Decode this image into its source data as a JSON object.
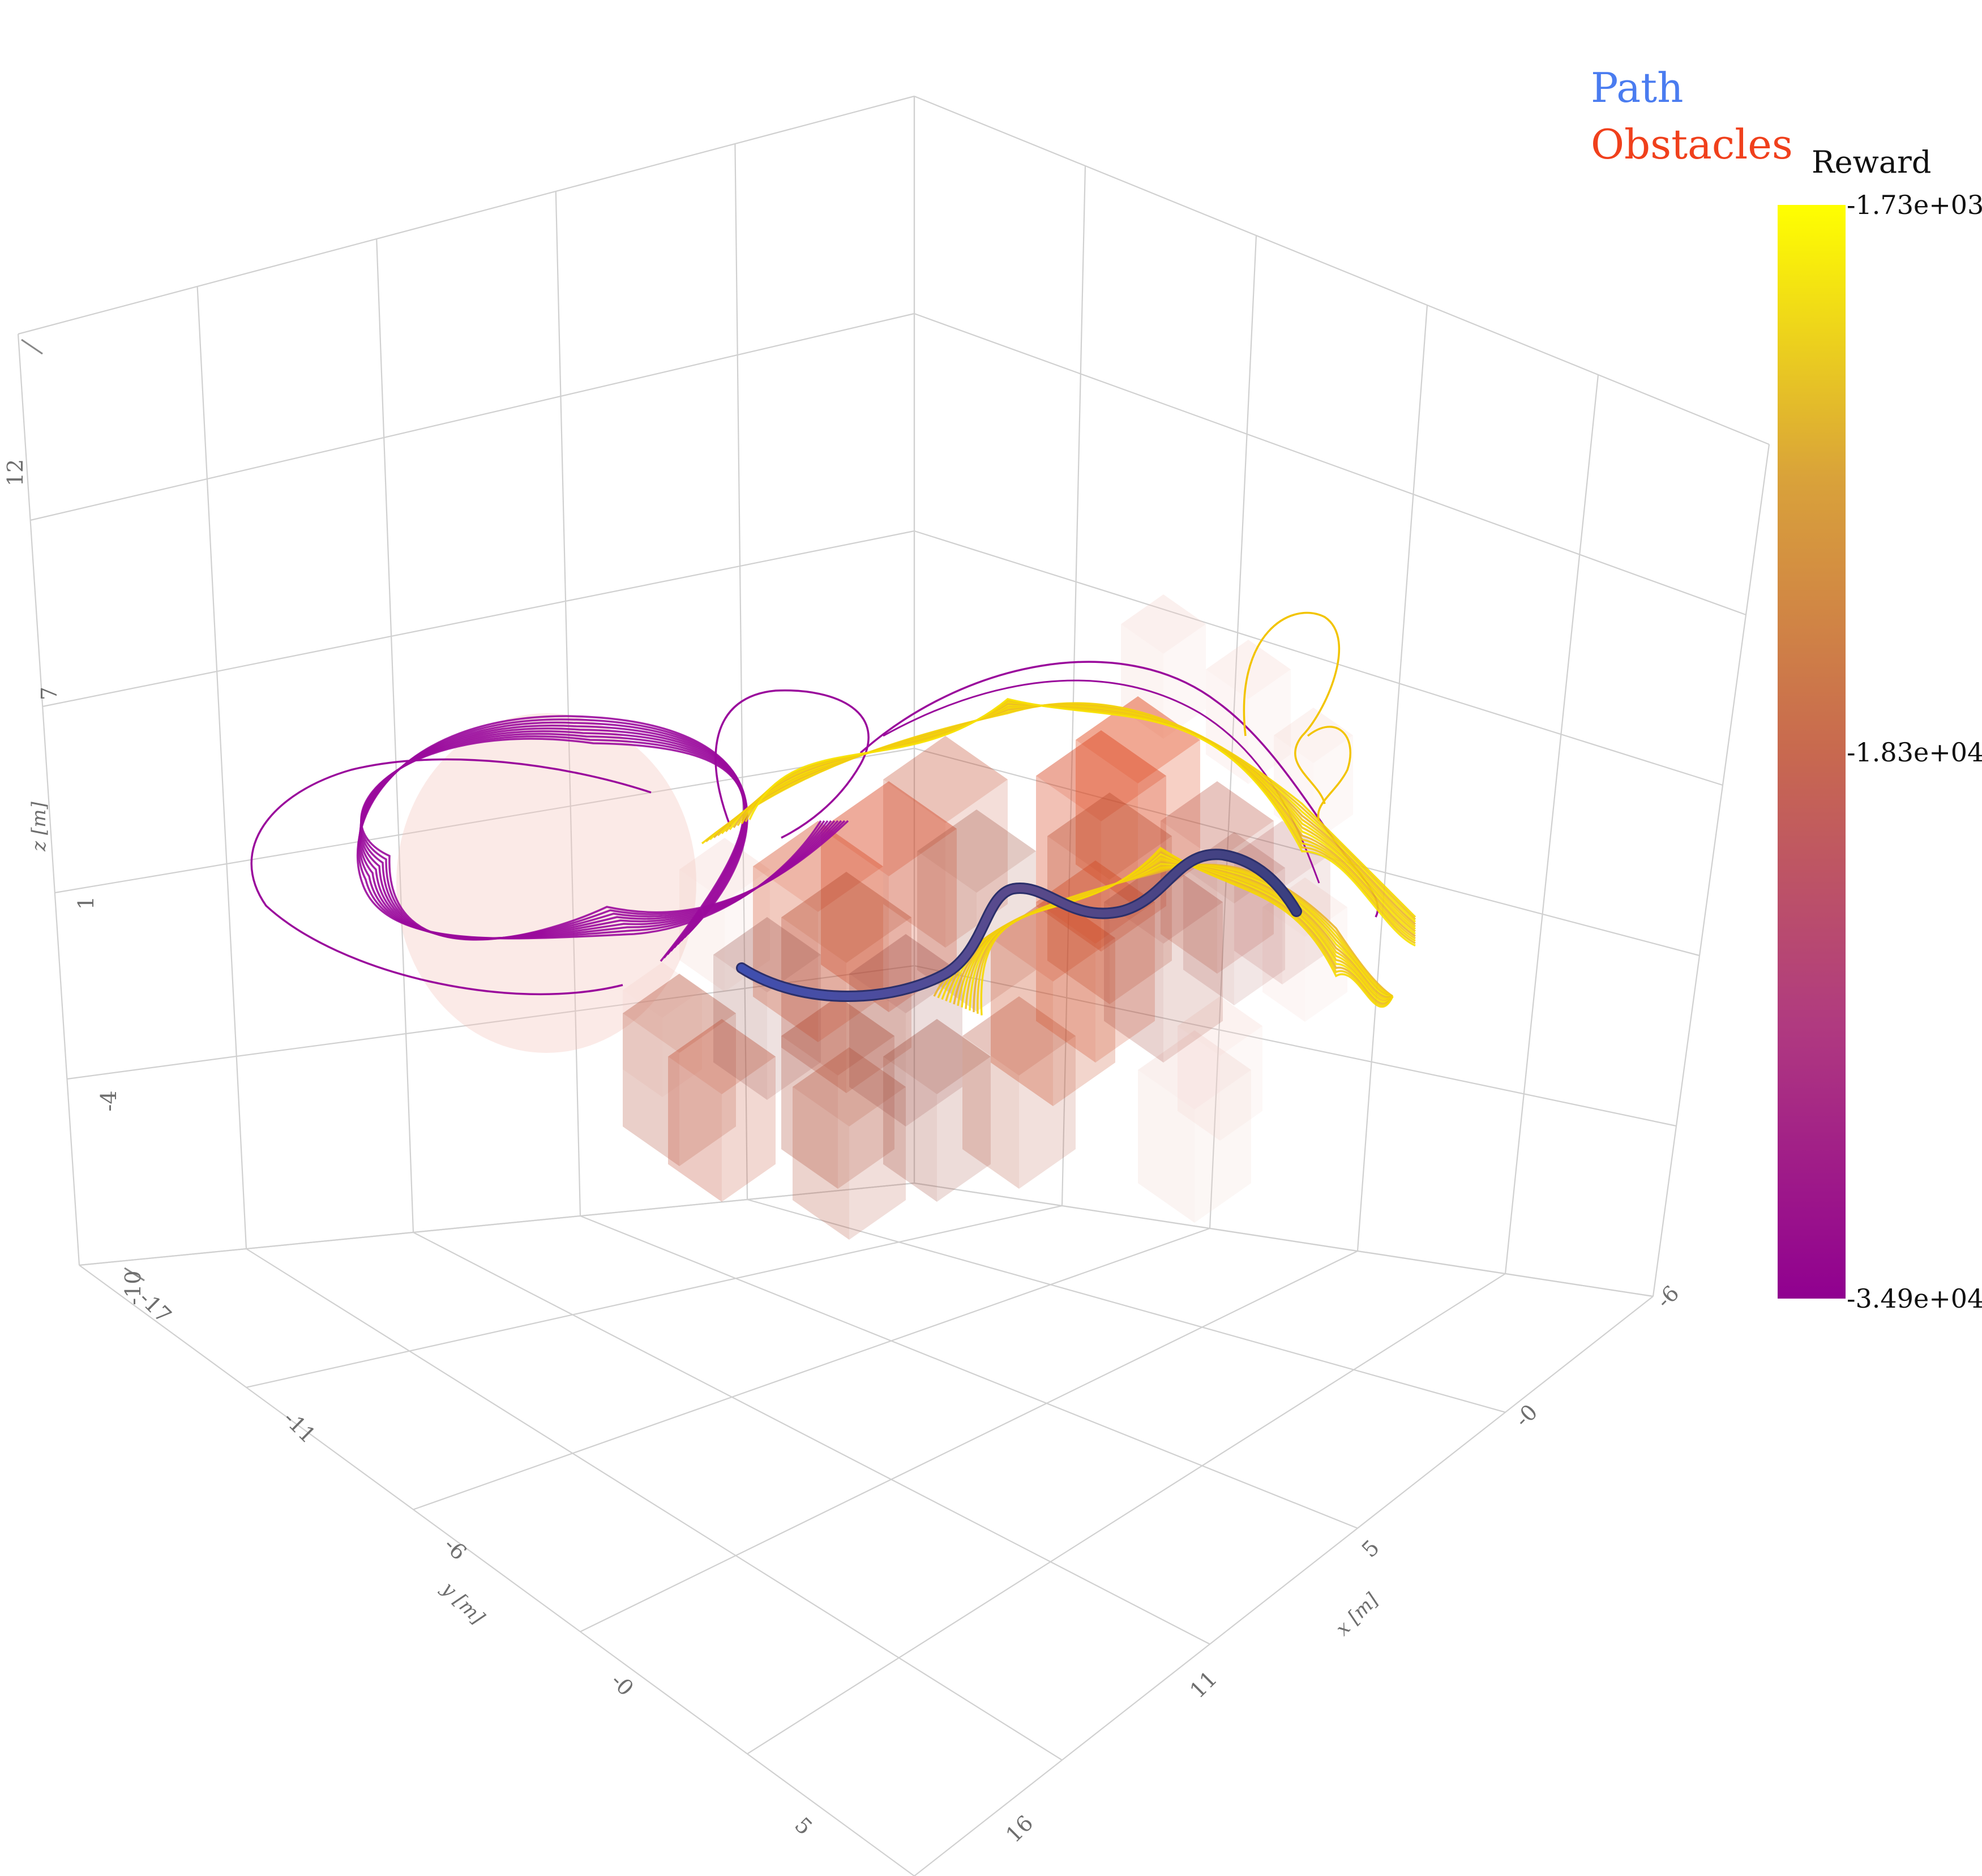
{
  "chart_data": {
    "type": "3d-scatter-trajectories",
    "axes": {
      "x": {
        "label": "x [m]",
        "ticks": [
          "-6",
          "-0",
          "5",
          "11",
          "16"
        ]
      },
      "y": {
        "label": "y [m]",
        "ticks": [
          "-17",
          "-11",
          "-6",
          "-0",
          "5"
        ]
      },
      "z": {
        "label": "z [m]",
        "ticks": [
          "-10",
          "-4",
          "1",
          "7",
          "12"
        ]
      }
    },
    "legend": [
      {
        "label": "Path",
        "color": "#4a7cf0"
      },
      {
        "label": "Obstacles",
        "color": "#f0401c"
      }
    ],
    "colorbar": {
      "title": "Reward",
      "max_label": "-1.73e+03",
      "mid_label": "-1.83e+04",
      "min_label": "-3.49e+04",
      "colors": [
        "#ffff00",
        "#d9a23a",
        "#c8694f",
        "#b03a80",
        "#900090"
      ]
    },
    "series": [
      {
        "name": "Path",
        "color": "#3f4fa0"
      },
      {
        "name": "Obstacles",
        "color": "#e8411a"
      }
    ]
  }
}
